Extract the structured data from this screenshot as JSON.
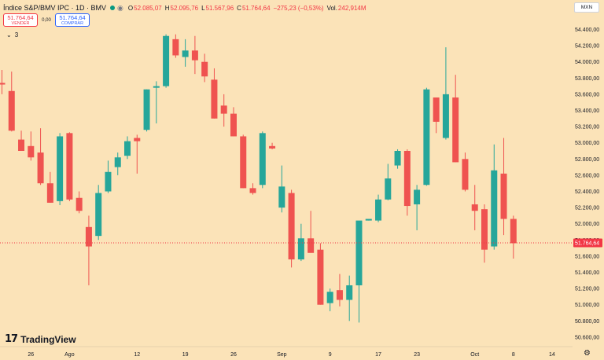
{
  "header": {
    "symbol": "Índice S&P/BMV IPC · 1D · BMV",
    "eye_icon": "eye-icon",
    "status_color": "#089981",
    "o_label": "O",
    "o_value": "52.085,07",
    "h_label": "H",
    "h_value": "52.095,76",
    "l_label": "L",
    "l_value": "51.567,96",
    "c_label": "C",
    "c_value": "51.764,64",
    "change": "−275,23 (−0,53%)",
    "vol_label": "Vol.",
    "vol_value": "242,914M"
  },
  "trade": {
    "sell_price": "51.764,64",
    "sell_label": "VENDER",
    "spread": "0,00",
    "buy_price": "51.764,64",
    "buy_label": "COMPRAR"
  },
  "indicators": {
    "count": "3",
    "chevron_icon": "chevron-down-icon"
  },
  "currency": "MXN",
  "logo_text": "TradingView",
  "settings_icon": "gear-icon",
  "colors": {
    "up": "#26A69A",
    "down": "#EF5350",
    "background": "#FBE3B8",
    "last_price": "#F23645"
  },
  "chart_data": {
    "type": "candlestick",
    "title": "Índice S&P/BMV IPC · 1D · BMV",
    "xlabel": "",
    "ylabel": "",
    "ylim": [
      50450,
      54600
    ],
    "grid": false,
    "y_ticks": [
      "54.400,00",
      "54.200,00",
      "54.000,00",
      "53.800,00",
      "53.600,00",
      "53.400,00",
      "53.200,00",
      "53.000,00",
      "52.800,00",
      "52.600,00",
      "52.400,00",
      "52.200,00",
      "52.000,00",
      "51.800,00",
      "51.600,00",
      "51.400,00",
      "51.200,00",
      "51.000,00",
      "50.800,00",
      "50.600,00"
    ],
    "y_tick_values": [
      54400,
      54200,
      54000,
      53800,
      53600,
      53400,
      53200,
      53000,
      52800,
      52600,
      52400,
      52200,
      52000,
      51800,
      51600,
      51400,
      51200,
      51000,
      50800,
      50600
    ],
    "x_ticks": [
      {
        "label": "26",
        "index": 3
      },
      {
        "label": "Ago",
        "index": 7
      },
      {
        "label": "12",
        "index": 14
      },
      {
        "label": "19",
        "index": 19
      },
      {
        "label": "26",
        "index": 24
      },
      {
        "label": "Sep",
        "index": 29
      },
      {
        "label": "9",
        "index": 34
      },
      {
        "label": "17",
        "index": 39
      },
      {
        "label": "23",
        "index": 43
      },
      {
        "label": "Oct",
        "index": 49
      },
      {
        "label": "8",
        "index": 53
      },
      {
        "label": "14",
        "index": 57
      }
    ],
    "last_price": 51764.64,
    "last_price_label": "51.764,64",
    "candles": [
      {
        "o": 53740,
        "h": 53900,
        "l": 53600,
        "c": 53720
      },
      {
        "o": 53640,
        "h": 53880,
        "l": 53140,
        "c": 53150
      },
      {
        "o": 53040,
        "h": 53150,
        "l": 52900,
        "c": 52900
      },
      {
        "o": 52960,
        "h": 53140,
        "l": 52780,
        "c": 52820
      },
      {
        "o": 52880,
        "h": 53180,
        "l": 52480,
        "c": 52500
      },
      {
        "o": 52500,
        "h": 52640,
        "l": 52260,
        "c": 52260
      },
      {
        "o": 52280,
        "h": 53120,
        "l": 52230,
        "c": 53080
      },
      {
        "o": 53120,
        "h": 53130,
        "l": 52280,
        "c": 52300
      },
      {
        "o": 52320,
        "h": 52400,
        "l": 52130,
        "c": 52160
      },
      {
        "o": 51960,
        "h": 52100,
        "l": 51240,
        "c": 51720
      },
      {
        "o": 51850,
        "h": 52480,
        "l": 51800,
        "c": 52380
      },
      {
        "o": 52400,
        "h": 52780,
        "l": 52380,
        "c": 52640
      },
      {
        "o": 52700,
        "h": 52880,
        "l": 52600,
        "c": 52820
      },
      {
        "o": 52840,
        "h": 53080,
        "l": 52800,
        "c": 53020
      },
      {
        "o": 53060,
        "h": 53100,
        "l": 52620,
        "c": 53020
      },
      {
        "o": 53160,
        "h": 53660,
        "l": 53140,
        "c": 53660
      },
      {
        "o": 53680,
        "h": 53760,
        "l": 53240,
        "c": 53700
      },
      {
        "o": 53700,
        "h": 54340,
        "l": 53680,
        "c": 54320
      },
      {
        "o": 54280,
        "h": 54340,
        "l": 54050,
        "c": 54080
      },
      {
        "o": 54060,
        "h": 54280,
        "l": 53940,
        "c": 54140
      },
      {
        "o": 54140,
        "h": 54320,
        "l": 53850,
        "c": 54020
      },
      {
        "o": 54000,
        "h": 54100,
        "l": 53750,
        "c": 53820
      },
      {
        "o": 53780,
        "h": 53920,
        "l": 53300,
        "c": 53300
      },
      {
        "o": 53460,
        "h": 53600,
        "l": 53200,
        "c": 53360
      },
      {
        "o": 53360,
        "h": 53440,
        "l": 53080,
        "c": 53080
      },
      {
        "o": 53080,
        "h": 53100,
        "l": 52440,
        "c": 52440
      },
      {
        "o": 52440,
        "h": 52500,
        "l": 52360,
        "c": 52380
      },
      {
        "o": 52480,
        "h": 53140,
        "l": 52440,
        "c": 53120
      },
      {
        "o": 52960,
        "h": 53000,
        "l": 52920,
        "c": 52930
      },
      {
        "o": 52200,
        "h": 52720,
        "l": 52140,
        "c": 52460
      },
      {
        "o": 52380,
        "h": 52420,
        "l": 51460,
        "c": 51560
      },
      {
        "o": 51560,
        "h": 52000,
        "l": 51540,
        "c": 51820
      },
      {
        "o": 51820,
        "h": 52160,
        "l": 51660,
        "c": 51640
      },
      {
        "o": 51680,
        "h": 51760,
        "l": 51000,
        "c": 51000
      },
      {
        "o": 51020,
        "h": 51200,
        "l": 50920,
        "c": 51160
      },
      {
        "o": 51180,
        "h": 51380,
        "l": 50980,
        "c": 51060
      },
      {
        "o": 51060,
        "h": 51360,
        "l": 50800,
        "c": 51240
      },
      {
        "o": 51240,
        "h": 52000,
        "l": 50780,
        "c": 52040
      },
      {
        "o": 52040,
        "h": 52060,
        "l": 52040,
        "c": 52060
      },
      {
        "o": 52040,
        "h": 52360,
        "l": 52020,
        "c": 52300
      },
      {
        "o": 52300,
        "h": 52740,
        "l": 52290,
        "c": 52560
      },
      {
        "o": 52720,
        "h": 52920,
        "l": 52680,
        "c": 52900
      },
      {
        "o": 52900,
        "h": 52920,
        "l": 52100,
        "c": 52220
      },
      {
        "o": 52240,
        "h": 52480,
        "l": 51920,
        "c": 52420
      },
      {
        "o": 52480,
        "h": 53680,
        "l": 52470,
        "c": 53660
      },
      {
        "o": 53560,
        "h": 53560,
        "l": 53120,
        "c": 53260
      },
      {
        "o": 53060,
        "h": 54180,
        "l": 53040,
        "c": 53600
      },
      {
        "o": 53560,
        "h": 53840,
        "l": 52760,
        "c": 52760
      },
      {
        "o": 52800,
        "h": 52880,
        "l": 52400,
        "c": 52420
      },
      {
        "o": 52240,
        "h": 52480,
        "l": 51920,
        "c": 52160
      },
      {
        "o": 52180,
        "h": 52240,
        "l": 51520,
        "c": 51680
      },
      {
        "o": 51720,
        "h": 52980,
        "l": 51680,
        "c": 52660
      },
      {
        "o": 52620,
        "h": 53060,
        "l": 51860,
        "c": 52060
      },
      {
        "o": 52060,
        "h": 52100,
        "l": 51570,
        "c": 51760
      }
    ]
  }
}
